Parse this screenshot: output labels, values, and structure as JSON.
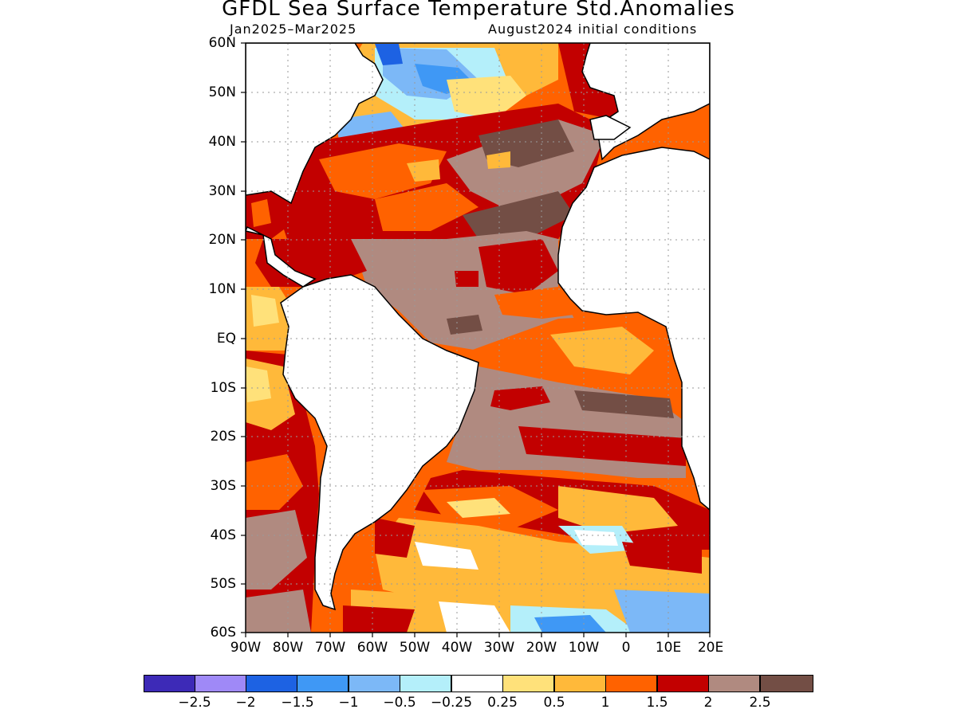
{
  "title": "GFDL Sea Surface Temperature Std.Anomalies",
  "subtitle_left": "Jan2025–Mar2025",
  "subtitle_right": "August2024 initial conditions",
  "map": {
    "projection": "lat-lon",
    "lon_range": [
      -90,
      20
    ],
    "lat_range": [
      -60,
      60
    ],
    "grid": "dotted",
    "land_color": "#ffffff",
    "coastline_color": "#000000"
  },
  "lat_ticks": [
    "60N",
    "50N",
    "40N",
    "30N",
    "20N",
    "10N",
    "EQ",
    "10S",
    "20S",
    "30S",
    "40S",
    "50S",
    "60S"
  ],
  "lon_ticks": [
    "90W",
    "80W",
    "70W",
    "60W",
    "50W",
    "40W",
    "30W",
    "20W",
    "10W",
    "0",
    "10E",
    "20E"
  ],
  "colorbar": {
    "colors": [
      "#3d2ab7",
      "#9f89f7",
      "#1d62e3",
      "#3f98f5",
      "#7cb8f7",
      "#b4effa",
      "#ffffff",
      "#ffe17a",
      "#ffb93a",
      "#ff6200",
      "#c20000",
      "#b08a80",
      "#734e45"
    ],
    "labels": [
      "−2.5",
      "−2",
      "−1.5",
      "−1",
      "−0.5",
      "−0.25",
      "0.25",
      "0.5",
      "1",
      "1.5",
      "2",
      "2.5"
    ]
  }
}
